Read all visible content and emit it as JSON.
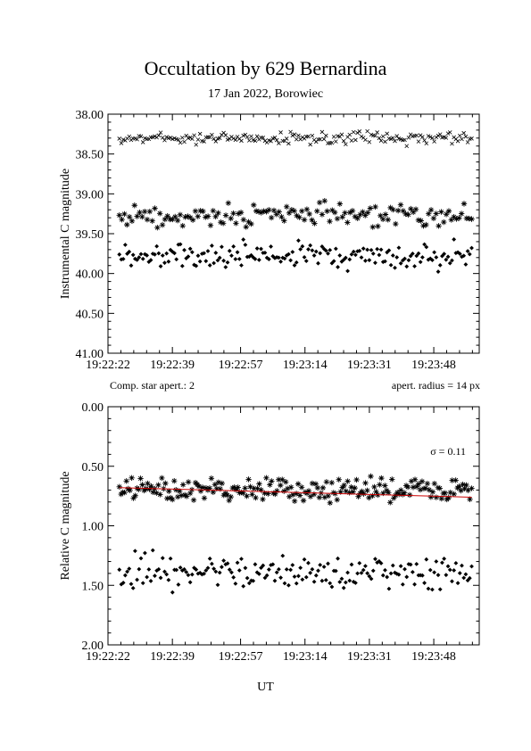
{
  "figure": {
    "title": "Occultation by 629 Bernardina",
    "subtitle": "17 Jan 2022, Borowiec",
    "xlabel": "UT"
  },
  "chart_data": [
    {
      "type": "scatter",
      "ylabel": "Instrumental C magnitude",
      "y_inverted": true,
      "ylim": [
        38.0,
        41.0
      ],
      "yticks": [
        38.0,
        38.5,
        39.0,
        39.5,
        40.0,
        40.5,
        41.0
      ],
      "ytick_labels": [
        "38.00",
        "38.50",
        "39.00",
        "39.50",
        "40.00",
        "40.50",
        "41.00"
      ],
      "xlim": [
        "19:22:22",
        "19:24:00"
      ],
      "xticks": [
        "19:22:22",
        "19:22:39",
        "19:22:57",
        "19:23:14",
        "19:23:31",
        "19:23:48"
      ],
      "note_left": "Comp. star apert.: 2",
      "note_right": "apert. radius = 14 px",
      "series": [
        {
          "marker": "cross",
          "x_start": "19:22:25",
          "x_end": "19:23:58",
          "count": 180,
          "mean": 38.3,
          "jitter": 0.07
        },
        {
          "marker": "asterisk",
          "x_start": "19:22:25",
          "x_end": "19:23:58",
          "count": 140,
          "mean": 39.27,
          "jitter": 0.12
        },
        {
          "marker": "diamond",
          "x_start": "19:22:25",
          "x_end": "19:23:58",
          "count": 180,
          "mean": 39.78,
          "jitter": 0.15
        }
      ]
    },
    {
      "type": "scatter",
      "ylabel": "Relative C magnitude",
      "y_inverted": true,
      "ylim": [
        0.0,
        2.0
      ],
      "yticks": [
        0.0,
        0.5,
        1.0,
        1.5,
        2.0
      ],
      "ytick_labels": [
        "0.00",
        "0.50",
        "1.00",
        "1.50",
        "2.00"
      ],
      "xlim": [
        "19:22:22",
        "19:24:00"
      ],
      "xticks": [
        "19:22:22",
        "19:22:39",
        "19:22:57",
        "19:23:14",
        "19:23:31",
        "19:23:48"
      ],
      "annotation": "σ = 0.11",
      "trend_line": {
        "x": [
          "19:22:25",
          "19:23:58"
        ],
        "y": [
          0.68,
          0.76
        ],
        "color": "#cc0000"
      },
      "series": [
        {
          "marker": "asterisk",
          "x_start": "19:22:25",
          "x_end": "19:23:58",
          "count": 200,
          "mean": 0.7,
          "jitter": 0.09
        },
        {
          "marker": "diamond",
          "x_start": "19:22:25",
          "x_end": "19:23:58",
          "count": 180,
          "mean": 1.38,
          "jitter": 0.13
        }
      ]
    }
  ]
}
